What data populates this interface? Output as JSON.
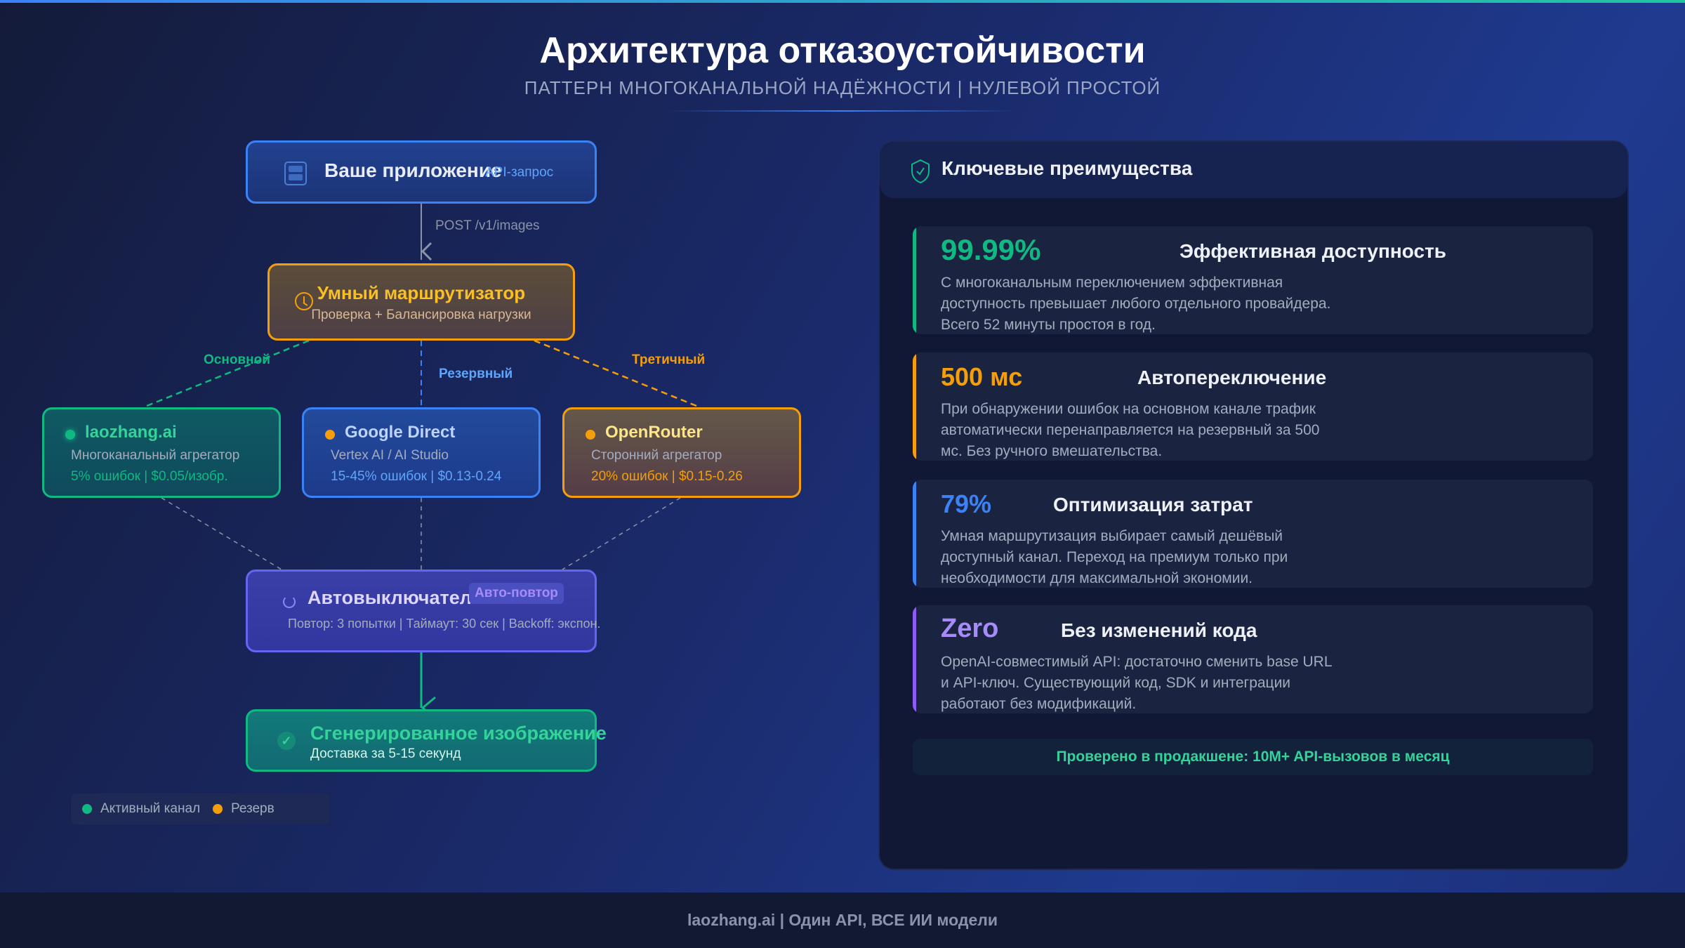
{
  "header": {
    "title": "Архитектура отказоустойчивости",
    "subtitle": "ПАТТЕРН МНОГОКАНАЛЬНОЙ НАДЁЖНОСТИ | НУЛЕВОЙ ПРОСТОЙ"
  },
  "diagram": {
    "app": {
      "title": "Ваше приложение",
      "tag": "API-запрос",
      "icon": "server-icon"
    },
    "request_label": "POST /v1/images",
    "router": {
      "title": "Умный маршрутизатор",
      "subtitle": "Проверка + Балансировка нагрузки",
      "icon": "clock-icon"
    },
    "edge_labels": {
      "primary": "Основной",
      "backup": "Резервный",
      "tertiary": "Третичный"
    },
    "providers": [
      {
        "name": "laozhang.ai",
        "desc": "Многоканальный агрегатор",
        "stats": "5% ошибок | $0.05/изобр.",
        "color": "#10b981"
      },
      {
        "name": "Google Direct",
        "desc": "Vertex AI / AI Studio",
        "stats": "15-45% ошибок | $0.13-0.24",
        "color": "#3b82f6"
      },
      {
        "name": "OpenRouter",
        "desc": "Сторонний агрегатор",
        "stats": "20% ошибок | $0.15-0.26",
        "color": "#f59e0b"
      }
    ],
    "breaker": {
      "title": "Автовыключатель",
      "badge": "Авто-повтор",
      "details": "Повтор: 3 попытки | Таймаут: 30 сек | Backoff: экспон.",
      "icon": "refresh-icon"
    },
    "output": {
      "title": "Сгенерированное изображение",
      "subtitle": "Доставка за 5-15 секунд",
      "icon": "check-icon"
    },
    "legend": {
      "active": "Активный канал",
      "reserve": "Резерв"
    }
  },
  "panel": {
    "title": "Ключевые преимущества",
    "icon": "shield-check-icon",
    "cards": [
      {
        "value": "99.99%",
        "title": "Эффективная доступность",
        "desc": "С многоканальным переключением эффективная доступность превышает любого отдельного провайдера. Всего 52 минуты простоя в год.",
        "color": "#10b981"
      },
      {
        "value": "500 мс",
        "title": "Автопереключение",
        "desc": "При обнаружении ошибок на основном канале трафик автоматически перенаправляется на резервный за 500 мс. Без ручного вмешательства.",
        "color": "#f59e0b"
      },
      {
        "value": "79%",
        "title": "Оптимизация затрат",
        "desc": "Умная маршрутизация выбирает самый дешёвый доступный канал. Переход на премиум только при необходимости для максимальной экономии.",
        "color": "#3b82f6"
      },
      {
        "value": "Zero",
        "title": "Без изменений кода",
        "desc": "OpenAI-совместимый API: достаточно сменить base URL и API-ключ. Существующий код, SDK и интеграции работают без модификаций.",
        "color": "#a78bfa"
      }
    ],
    "banner": "Проверено в продакшене: 10M+ API-вызовов в месяц"
  },
  "footer": "laozhang.ai | Один API, ВСЕ ИИ модели"
}
